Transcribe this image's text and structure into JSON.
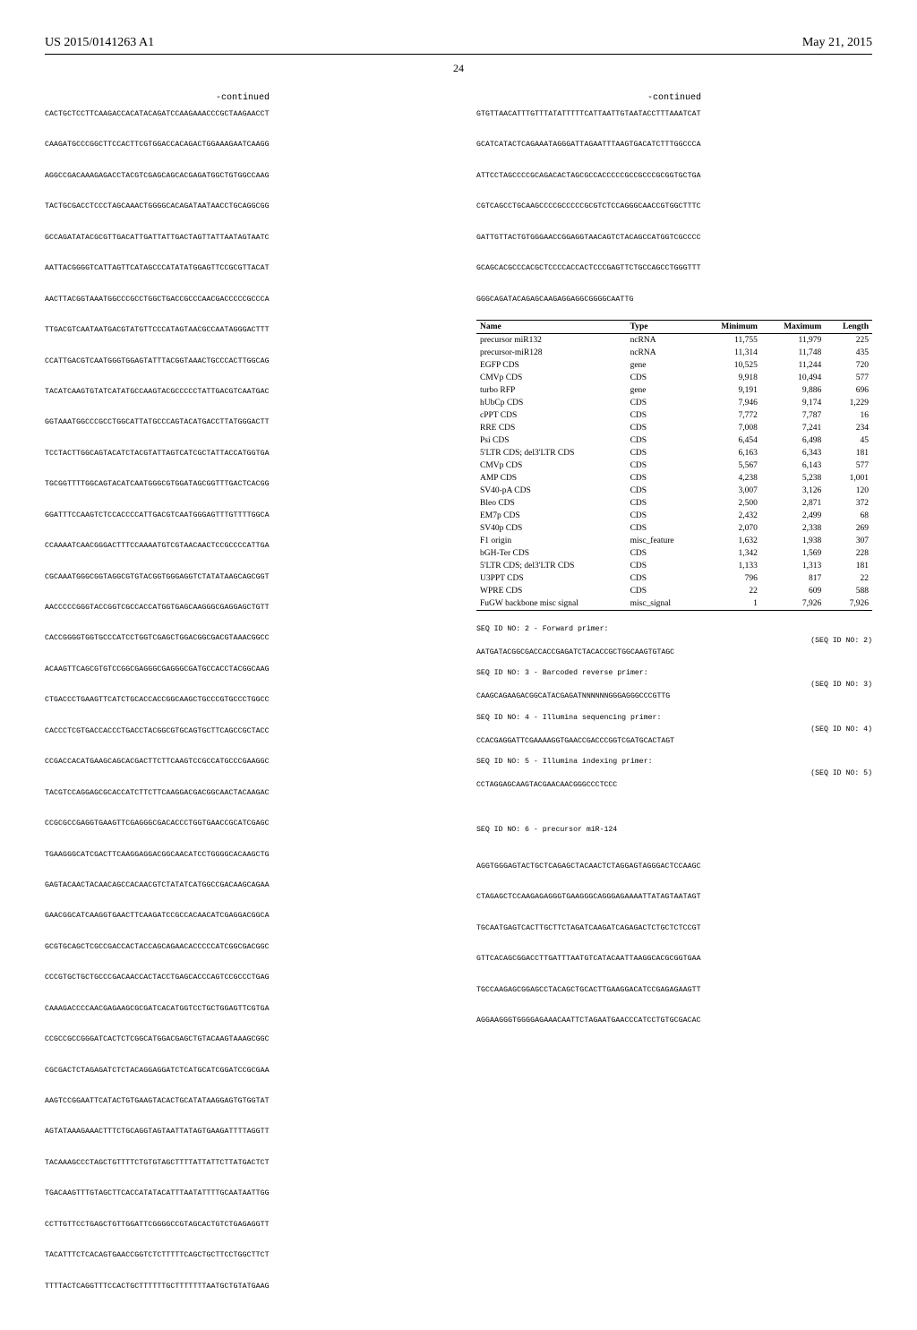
{
  "header": {
    "pub_number": "US 2015/0141263 A1",
    "pub_date": "May 21, 2015",
    "page_number": "24"
  },
  "left_column": {
    "continued_label": "-continued",
    "sequence": "CACTGCTCCTTCAAGACCACATACAGATCCAAGAAACCCGCTAAGAACCT\n\nCAAGATGCCCGGCTTCCACTTCGTGGACCACAGACTGGAAAGAATCAAGG\n\nAGGCCGACAAAGAGACCTACGTCGAGCAGCACGAGATGGCTGTGGCCAAG\n\nTACTGCGACCTCCCTAGCAAACTGGGGCACAGATAATAACCTGCAGGCGG\n\nGCCAGATATACGCGTTGACATTGATTATTGACTAGTTATTAATAGTAATC\n\nAATTACGGGGTCATTAGTTCATAGCCCATATATGGAGTTCCGCGTTACAT\n\nAACTTACGGTAAATGGCCCGCCTGGCTGACCGCCCAACGACCCCCGCCCA\n\nTTGACGTCAATAATGACGTATGTTCCCATAGTAACGCCAATAGGGACTTT\n\nCCATTGACGTCAATGGGTGGAGTATTTACGGTAAACTGCCCACTTGGCAG\n\nTACATCAAGTGTATCATATGCCAAGTACGCCCCCTATTGACGTCAATGAC\n\nGGTAAATGGCCCGCCTGGCATTATGCCCAGTACATGACCTTATGGGACTT\n\nTCCTACTTGGCAGTACATCTACGTATTAGTCATCGCTATTACCATGGTGA\n\nTGCGGTTTTGGCAGTACATCAATGGGCGTGGATAGCGGTTTGACTCACGG\n\nGGATTTCCAAGTCTCCACCCCATTGACGTCAATGGGAGTTTGTTTTGGCA\n\nCCAAAATCAACGGGACTTTCCAAAATGTCGTAACAACTCCGCCCCATTGA\n\nCGCAAATGGGCGGTAGGCGTGTACGGTGGGAGGTCTATATAAGCAGCGGT\n\nAACCCCCGGGTACCGGTCGCCACCATGGTGAGCAAGGGCGAGGAGCTGTT\n\nCACCGGGGTGGTGCCCATCCTGGTCGAGCTGGACGGCGACGTAAACGGCC\n\nACAAGTTCAGCGTGTCCGGCGAGGGCGAGGGCGATGCCACCTACGGCAAG\n\nCTGACCCTGAAGTTCATCTGCACCACCGGCAAGCTGCCCGTGCCCTGGCC\n\nCACCCTCGTGACCACCCTGACCTACGGCGTGCAGTGCTTCAGCCGCTACC\n\nCCGACCACATGAAGCAGCACGACTTCTTCAAGTCCGCCATGCCCGAAGGC\n\nTACGTCCAGGAGCGCACCATCTTCTTCAAGGACGACGGCAACTACAAGAC\n\nCCGCGCCGAGGTGAAGTTCGAGGGCGACACCCTGGTGAACCGCATCGAGC\n\nTGAAGGGCATCGACTTCAAGGAGGACGGCAACATCCTGGGGCACAAGCTG\n\nGAGTACAACTACAACAGCCACAACGTCTATATCATGGCCGACAAGCAGAA\n\nGAACGGCATCAAGGTGAACTTCAAGATCCGCCACAACATCGAGGACGGCA\n\nGCGTGCAGCTCGCCGACCACTACCAGCAGAACACCCCCATCGGCGACGGC\n\nCCCGTGCTGCTGCCCGACAACCACTACCTGAGCACCCAGTCCGCCCTGAG\n\nCAAAGACCCCAACGAGAAGCGCGATCACATGGTCCTGCTGGAGTTCGTGA\n\nCCGCCGCCGGGATCACTCTCGGCATGGACGAGCTGTACAAGTAAAGCGGC\n\nCGCGACTCTAGAGATCTCTACAGGAGGATCTCATGCATCGGATCCGCGAA\n\nAAGTCCGGAATTCATACTGTGAAGTACACTGCATATAAGGAGTGTGGTAT\n\nAGTATAAAGAAACTTTCTGCAGGTAGTAATTATAGTGAAGATTTTAGGTT\n\nTACAAAGCCCTAGCTGTTTTCTGTGTAGCTTTTATTATTCTTATGACTCT\n\nTGACAAGTTTGTAGCTTCACCATATACATTTAATATTTTGCAATAATTGG\n\nCCTTGTTCCTGAGCTGTTGGATTCGGGGCCGTAGCACTGTCTGAGAGGTT\n\nTACATTTCTCACAGTGAACCGGTCTCTTTTTCAGCTGCTTCCTGGCTTCT\n\nTTTTACTCAGGTTTCCACTGCTTTTTTGCTTTTTTTAATGCTGTATGAAG"
  },
  "right_column": {
    "continued_label": "-continued",
    "sequence_top": "GTGTTAACATTTGTTTATATTTTTCATTAATTGTAATACCTTTAAATCAT\n\nGCATCATACTCAGAAATAGGGATTAGAATTTAAGTGACATCTTTGGCCCA\n\nATTCCTAGCCCCGCAGACACTAGCGCCACCCCCGCCGCCCGCGGTGCTGA\n\nCGTCAGCCTGCAAGCCCCGCCCCCGCGTCTCCAGGGCAACCGTGGCTTTC\n\nGATTGTTACTGTGGGAACCGGAGGTAACAGTCTACAGCCATGGTCGCCCC\n\nGCAGCACGCCCACGCTCCCCACCACTCCCGAGTTCTGCCAGCCTGGGTTT\n\nGGGCAGATACAGAGCAAGAGGAGGCGGGGCAATTG",
    "table": {
      "columns": [
        "Name",
        "Type",
        "Minimum",
        "Maximum",
        "Length"
      ],
      "rows": [
        [
          "precursor miR132",
          "ncRNA",
          "11,755",
          "11,979",
          "225"
        ],
        [
          "precursor-miR128",
          "ncRNA",
          "11,314",
          "11,748",
          "435"
        ],
        [
          "EGFP CDS",
          "gene",
          "10,525",
          "11,244",
          "720"
        ],
        [
          "CMVp CDS",
          "CDS",
          "9,918",
          "10,494",
          "577"
        ],
        [
          "turbo RFP",
          "gene",
          "9,191",
          "9,886",
          "696"
        ],
        [
          "hUbCp CDS",
          "CDS",
          "7,946",
          "9,174",
          "1,229"
        ],
        [
          "cPPT CDS",
          "CDS",
          "7,772",
          "7,787",
          "16"
        ],
        [
          "RRE CDS",
          "CDS",
          "7,008",
          "7,241",
          "234"
        ],
        [
          "Psi CDS",
          "CDS",
          "6,454",
          "6,498",
          "45"
        ],
        [
          "5'LTR CDS; del3'LTR CDS",
          "CDS",
          "6,163",
          "6,343",
          "181"
        ],
        [
          "CMVp CDS",
          "CDS",
          "5,567",
          "6,143",
          "577"
        ],
        [
          "AMP CDS",
          "CDS",
          "4,238",
          "5,238",
          "1,001"
        ],
        [
          "SV40-pA CDS",
          "CDS",
          "3,007",
          "3,126",
          "120"
        ],
        [
          "Bleo CDS",
          "CDS",
          "2,500",
          "2,871",
          "372"
        ],
        [
          "EM7p CDS",
          "CDS",
          "2,432",
          "2,499",
          "68"
        ],
        [
          "SV40p CDS",
          "CDS",
          "2,070",
          "2,338",
          "269"
        ],
        [
          "F1 origin",
          "misc_feature",
          "1,632",
          "1,938",
          "307"
        ],
        [
          "bGH-Ter CDS",
          "CDS",
          "1,342",
          "1,569",
          "228"
        ],
        [
          "5'LTR CDS; del3'LTR CDS",
          "CDS",
          "1,133",
          "1,313",
          "181"
        ],
        [
          "U3PPT CDS",
          "CDS",
          "796",
          "817",
          "22"
        ],
        [
          "WPRE CDS",
          "CDS",
          "22",
          "609",
          "588"
        ],
        [
          "FuGW backbone misc signal",
          "misc_signal",
          "1",
          "7,926",
          "7,926"
        ]
      ]
    },
    "primers": [
      {
        "title": "SEQ ID NO: 2 - Forward primer:",
        "tag": "(SEQ ID NO: 2)",
        "seq": "AATGATACGGCGACCACCGAGATCTACACCGCTGGCAAGTGTAGC"
      },
      {
        "title": "SEQ ID NO: 3 - Barcoded reverse primer:",
        "tag": "(SEQ ID NO: 3)",
        "seq": "CAAGCAGAAGACGGCATACGAGATNNNNNNGGGAGGGCCCGTTG"
      },
      {
        "title": "SEQ ID NO: 4 - Illumina sequencing primer:",
        "tag": "(SEQ ID NO: 4)",
        "seq": "CCACGAGGATTCGAAAAGGTGAACCGACCCGGTCGATGCACTAGT"
      },
      {
        "title": "SEQ ID NO: 5 - Illumina indexing primer:",
        "tag": "(SEQ ID NO: 5)",
        "seq": "CCTAGGAGCAAGTACGAACAACGGGCCCTCCC"
      }
    ],
    "seq6": {
      "title": "SEQ ID NO: 6 - precursor miR-124",
      "seq": "AGGTGGGAGTACTGCTCAGAGCTACAACTCTAGGAGTAGGGACTCCAAGC\n\nCTAGAGCTCCAAGAGAGGGTGAAGGGCAGGGAGAAAATTATAGTAATAGT\n\nTGCAATGAGTCACTTGCTTCTAGATCAAGATCAGAGACTCTGCTCTCCGT\n\nGTTCACAGCGGACCTTGATTTAATGTCATACAATTAAGGCACGCGGTGAA\n\nTGCCAAGAGCGGAGCCTACAGCTGCACTTGAAGGACATCCGAGAGAAGTT\n\nAGGAAGGGTGGGGAGAAACAATTCTAGAATGAACCCATCCTGTGCGACAC"
    }
  }
}
